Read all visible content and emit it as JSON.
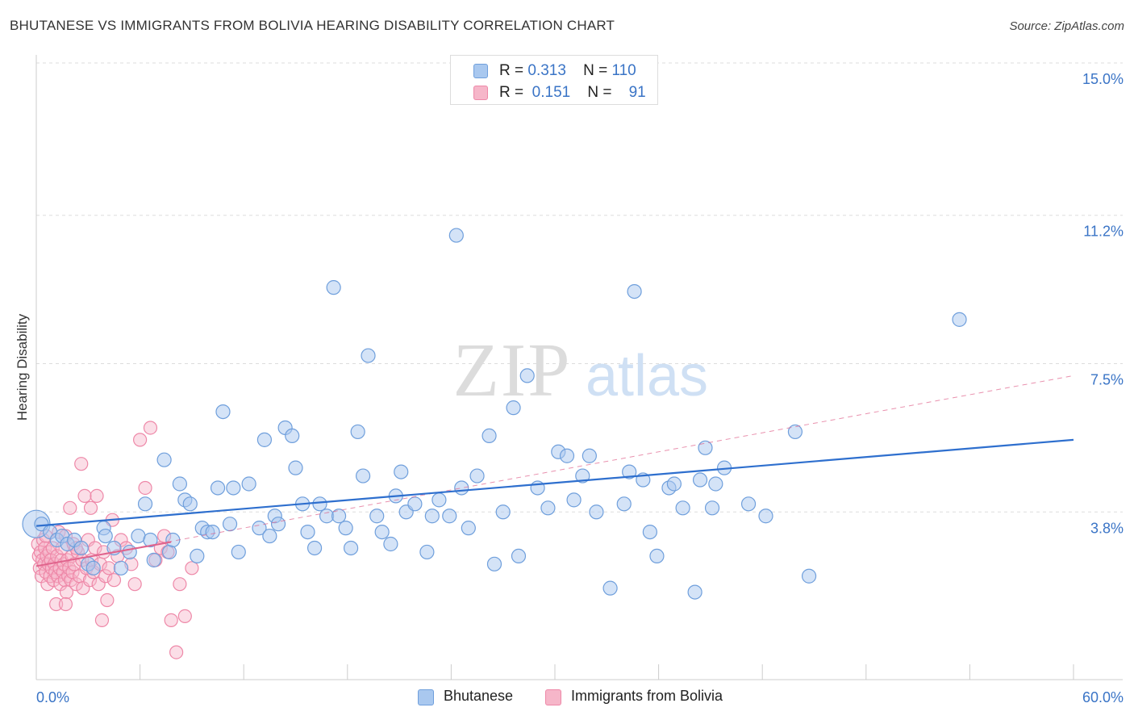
{
  "header": {
    "title": "BHUTANESE VS IMMIGRANTS FROM BOLIVIA HEARING DISABILITY CORRELATION CHART",
    "source": "Source: ZipAtlas.com"
  },
  "watermark": {
    "zip": "ZIP",
    "atlas": "atlas"
  },
  "legend_top": {
    "rows": [
      {
        "r_label": "R =",
        "r_value": "0.313",
        "n_label": "N =",
        "n_value": "110"
      },
      {
        "r_label": "R =",
        "r_value": "0.151",
        "n_label": "N =",
        "n_value": "91"
      }
    ]
  },
  "legend_bottom": {
    "items": [
      "Bhutanese",
      "Immigrants from Bolivia"
    ]
  },
  "colors": {
    "blue_fill": "#a9c8ef",
    "blue_stroke": "#6f9fdc",
    "blue_line": "#2e6fce",
    "pink_fill": "#f6b6c9",
    "pink_stroke": "#ee88a8",
    "pink_line": "#e0638c",
    "tick_label": "#3a74c6",
    "grid": "#dddddd"
  },
  "chart_data": {
    "type": "scatter",
    "title": "BHUTANESE VS IMMIGRANTS FROM BOLIVIA HEARING DISABILITY CORRELATION CHART",
    "xlabel": "",
    "ylabel": "Hearing Disability",
    "xlim": [
      0,
      60
    ],
    "ylim": [
      0,
      15
    ],
    "x_tick_labels": [
      "0.0%",
      "60.0%"
    ],
    "y_ticks": [
      3.8,
      7.5,
      11.2,
      15.0
    ],
    "y_tick_labels": [
      "3.8%",
      "7.5%",
      "11.2%",
      "15.0%"
    ],
    "legend_position": "top-center",
    "grid": true,
    "series": [
      {
        "name": "Bhutanese",
        "r": 0.313,
        "n": 110,
        "trend": {
          "x": [
            0,
            60
          ],
          "y": [
            3.45,
            5.6
          ],
          "style": "solid"
        },
        "points": [
          [
            0.3,
            3.5
          ],
          [
            0.8,
            3.3
          ],
          [
            1.2,
            3.1
          ],
          [
            1.5,
            3.2
          ],
          [
            1.8,
            3.0
          ],
          [
            2.2,
            3.1
          ],
          [
            2.6,
            2.9
          ],
          [
            3.0,
            2.5
          ],
          [
            3.3,
            2.4
          ],
          [
            3.9,
            3.4
          ],
          [
            4.0,
            3.2
          ],
          [
            4.5,
            2.9
          ],
          [
            4.9,
            2.4
          ],
          [
            5.4,
            2.8
          ],
          [
            5.9,
            3.2
          ],
          [
            6.3,
            4.0
          ],
          [
            6.6,
            3.1
          ],
          [
            6.8,
            2.6
          ],
          [
            7.4,
            5.1
          ],
          [
            7.7,
            2.8
          ],
          [
            7.9,
            3.1
          ],
          [
            8.3,
            4.5
          ],
          [
            8.6,
            4.1
          ],
          [
            8.9,
            4.0
          ],
          [
            9.3,
            2.7
          ],
          [
            9.6,
            3.4
          ],
          [
            9.9,
            3.3
          ],
          [
            10.2,
            3.3
          ],
          [
            10.5,
            4.4
          ],
          [
            10.8,
            6.3
          ],
          [
            11.2,
            3.5
          ],
          [
            11.4,
            4.4
          ],
          [
            11.7,
            2.8
          ],
          [
            12.3,
            4.5
          ],
          [
            12.9,
            3.4
          ],
          [
            13.2,
            5.6
          ],
          [
            13.5,
            3.2
          ],
          [
            13.8,
            3.7
          ],
          [
            14.0,
            3.5
          ],
          [
            14.4,
            5.9
          ],
          [
            14.8,
            5.7
          ],
          [
            15.0,
            4.9
          ],
          [
            15.4,
            4.0
          ],
          [
            15.7,
            3.3
          ],
          [
            16.1,
            2.9
          ],
          [
            16.4,
            4.0
          ],
          [
            16.8,
            3.7
          ],
          [
            17.2,
            9.4
          ],
          [
            17.5,
            3.7
          ],
          [
            17.9,
            3.4
          ],
          [
            18.2,
            2.9
          ],
          [
            18.6,
            5.8
          ],
          [
            18.9,
            4.7
          ],
          [
            19.2,
            7.7
          ],
          [
            19.7,
            3.7
          ],
          [
            20.0,
            3.3
          ],
          [
            20.5,
            3.0
          ],
          [
            20.8,
            4.2
          ],
          [
            21.1,
            4.8
          ],
          [
            21.4,
            3.8
          ],
          [
            21.9,
            4.0
          ],
          [
            22.6,
            2.8
          ],
          [
            22.9,
            3.7
          ],
          [
            23.3,
            4.1
          ],
          [
            23.9,
            3.7
          ],
          [
            24.3,
            10.7
          ],
          [
            24.6,
            4.4
          ],
          [
            25.0,
            3.4
          ],
          [
            25.5,
            4.7
          ],
          [
            26.2,
            5.7
          ],
          [
            26.5,
            2.5
          ],
          [
            27.0,
            3.8
          ],
          [
            27.6,
            6.4
          ],
          [
            27.9,
            2.7
          ],
          [
            28.4,
            7.2
          ],
          [
            29.0,
            4.4
          ],
          [
            29.6,
            3.9
          ],
          [
            30.2,
            5.3
          ],
          [
            30.7,
            5.2
          ],
          [
            31.1,
            4.1
          ],
          [
            31.6,
            4.7
          ],
          [
            32.0,
            5.2
          ],
          [
            32.4,
            3.8
          ],
          [
            33.2,
            1.9
          ],
          [
            34.0,
            4.0
          ],
          [
            34.3,
            4.8
          ],
          [
            34.6,
            9.3
          ],
          [
            35.1,
            4.6
          ],
          [
            35.5,
            3.3
          ],
          [
            35.9,
            2.7
          ],
          [
            36.6,
            4.4
          ],
          [
            36.9,
            4.5
          ],
          [
            37.4,
            3.9
          ],
          [
            38.1,
            1.8
          ],
          [
            38.4,
            4.6
          ],
          [
            38.7,
            5.4
          ],
          [
            39.1,
            3.9
          ],
          [
            39.3,
            4.5
          ],
          [
            39.8,
            4.9
          ],
          [
            41.2,
            4.0
          ],
          [
            42.2,
            3.7
          ],
          [
            43.9,
            5.8
          ],
          [
            44.7,
            2.2
          ],
          [
            53.4,
            8.6
          ]
        ]
      },
      {
        "name": "Immigrants from Bolivia",
        "r": 0.151,
        "n": 91,
        "trend": {
          "x": [
            0,
            7.8
          ],
          "y": [
            2.45,
            3.05
          ],
          "style": "solid"
        },
        "trend_extended": {
          "x": [
            0,
            60
          ],
          "y": [
            2.45,
            7.2
          ],
          "style": "dashed"
        },
        "points": [
          [
            0.1,
            3.0
          ],
          [
            0.15,
            2.7
          ],
          [
            0.2,
            2.4
          ],
          [
            0.25,
            2.8
          ],
          [
            0.3,
            2.2
          ],
          [
            0.35,
            2.6
          ],
          [
            0.4,
            3.1
          ],
          [
            0.45,
            2.5
          ],
          [
            0.5,
            2.9
          ],
          [
            0.55,
            2.3
          ],
          [
            0.6,
            2.7
          ],
          [
            0.65,
            2.0
          ],
          [
            0.7,
            2.5
          ],
          [
            0.75,
            2.8
          ],
          [
            0.8,
            2.2
          ],
          [
            0.85,
            2.6
          ],
          [
            0.9,
            2.4
          ],
          [
            0.95,
            2.9
          ],
          [
            1.0,
            2.1
          ],
          [
            1.05,
            2.5
          ],
          [
            1.1,
            2.3
          ],
          [
            1.15,
            1.5
          ],
          [
            1.2,
            2.7
          ],
          [
            1.25,
            2.2
          ],
          [
            1.3,
            3.3
          ],
          [
            1.35,
            2.4
          ],
          [
            1.4,
            2.0
          ],
          [
            1.45,
            2.6
          ],
          [
            1.5,
            2.9
          ],
          [
            1.55,
            2.3
          ],
          [
            1.6,
            2.5
          ],
          [
            1.65,
            2.1
          ],
          [
            1.7,
            3.2
          ],
          [
            1.75,
            1.8
          ],
          [
            1.8,
            2.6
          ],
          [
            1.85,
            2.2
          ],
          [
            1.9,
            2.4
          ],
          [
            1.95,
            3.9
          ],
          [
            2.0,
            2.1
          ],
          [
            2.05,
            2.7
          ],
          [
            2.1,
            2.3
          ],
          [
            2.15,
            3.0
          ],
          [
            2.2,
            2.5
          ],
          [
            2.3,
            2.0
          ],
          [
            2.4,
            2.8
          ],
          [
            2.5,
            2.2
          ],
          [
            2.6,
            5.0
          ],
          [
            2.65,
            2.6
          ],
          [
            2.7,
            1.9
          ],
          [
            2.8,
            4.2
          ],
          [
            2.9,
            2.4
          ],
          [
            3.0,
            3.1
          ],
          [
            3.1,
            2.1
          ],
          [
            3.15,
            3.9
          ],
          [
            3.2,
            2.6
          ],
          [
            3.3,
            2.3
          ],
          [
            3.4,
            2.9
          ],
          [
            3.5,
            4.2
          ],
          [
            3.6,
            2.0
          ],
          [
            3.7,
            2.5
          ],
          [
            3.8,
            1.1
          ],
          [
            3.9,
            2.8
          ],
          [
            4.0,
            2.2
          ],
          [
            4.2,
            2.4
          ],
          [
            4.4,
            3.6
          ],
          [
            4.5,
            2.1
          ],
          [
            4.7,
            2.7
          ],
          [
            4.9,
            3.1
          ],
          [
            5.2,
            2.9
          ],
          [
            5.5,
            2.5
          ],
          [
            5.7,
            2.0
          ],
          [
            6.0,
            5.6
          ],
          [
            6.3,
            4.4
          ],
          [
            6.6,
            5.9
          ],
          [
            6.9,
            2.6
          ],
          [
            7.2,
            2.9
          ],
          [
            7.4,
            3.2
          ],
          [
            7.6,
            2.8
          ],
          [
            7.8,
            1.1
          ],
          [
            8.1,
            0.3
          ],
          [
            8.3,
            2.0
          ],
          [
            8.6,
            1.2
          ],
          [
            9.0,
            2.4
          ],
          [
            1.7,
            1.5
          ],
          [
            2.3,
            2.9
          ],
          [
            0.55,
            3.2
          ],
          [
            4.1,
            1.6
          ]
        ]
      }
    ]
  }
}
